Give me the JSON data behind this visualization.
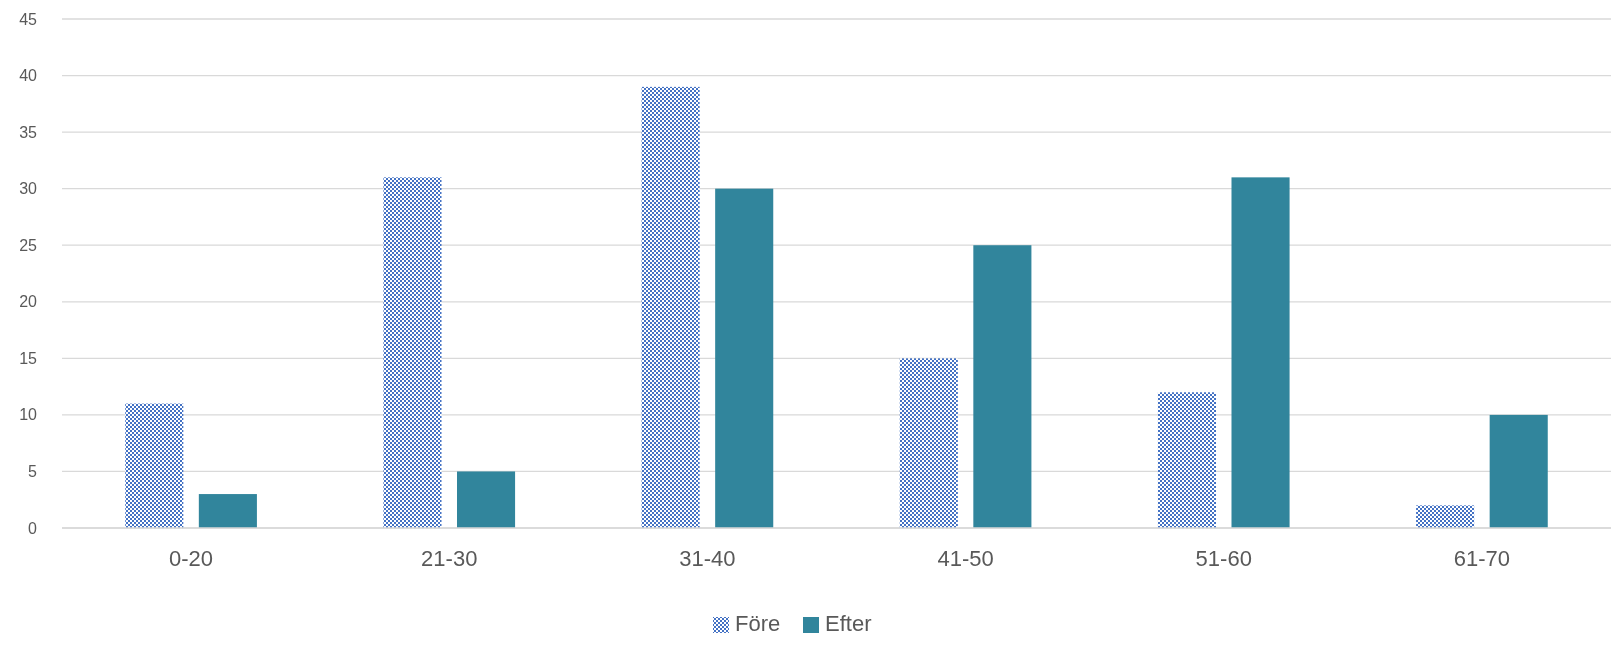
{
  "chart_data": {
    "type": "bar",
    "categories": [
      "0-20",
      "21-30",
      "31-40",
      "41-50",
      "51-60",
      "61-70"
    ],
    "series": [
      {
        "name": "Före",
        "color": "#4472c4",
        "values": [
          11,
          31,
          39,
          15,
          12,
          2
        ]
      },
      {
        "name": "Efter",
        "color": "#31859c",
        "values": [
          3,
          5,
          30,
          25,
          31,
          10
        ]
      }
    ],
    "ylim": [
      0,
      45
    ],
    "yticks": [
      0,
      5,
      10,
      15,
      20,
      25,
      30,
      35,
      40,
      45
    ],
    "grid": "y",
    "legend": "bottom"
  }
}
